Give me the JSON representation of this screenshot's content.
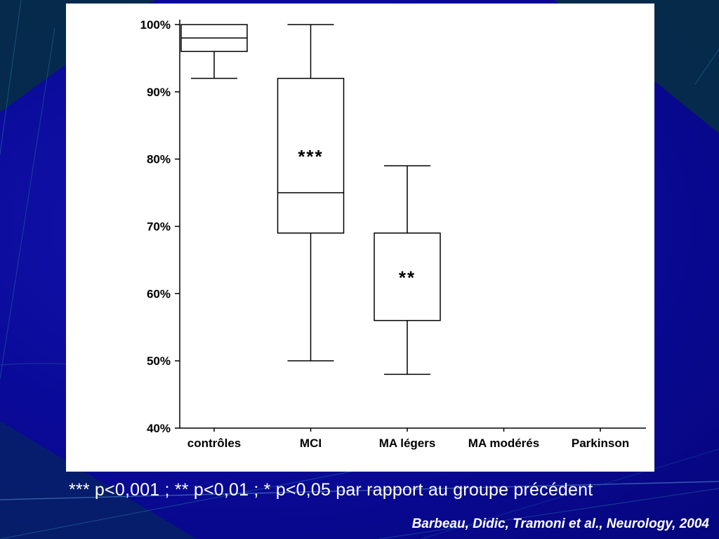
{
  "slide": {
    "footnote": "*** p<0,001 ; ** p<0,01 ; * p<0,05 par rapport au groupe précédent",
    "citation": "Barbeau, Didic, Tramoni et al., Neurology, 2004"
  },
  "colors": {
    "slide_background": "#0a0a99",
    "panel_background": "#ffffff",
    "chart_ink": "#000000",
    "slide_text": "#ffffff",
    "decor_line": "#3f7fbf",
    "decor_corner": "#05303f"
  },
  "chart_data": {
    "type": "boxplot",
    "title": "",
    "xlabel": "",
    "ylabel": "",
    "categories": [
      "contrôles",
      "MCI",
      "MA légers",
      "MA modérés",
      "Parkinson"
    ],
    "ylim": [
      40,
      100
    ],
    "yticks": [
      40,
      50,
      60,
      70,
      80,
      90,
      100
    ],
    "ytick_suffix": "%",
    "grid": false,
    "legend": false,
    "series": [
      {
        "category": "contrôles",
        "whisker_low": 92,
        "q1": 96,
        "median": 98,
        "q3": 100,
        "whisker_high": 100,
        "significance": null
      },
      {
        "category": "MCI",
        "whisker_low": 50,
        "q1": 69,
        "median": 75,
        "q3": 92,
        "whisker_high": 100,
        "significance": "***"
      },
      {
        "category": "MA légers",
        "whisker_low": 48,
        "q1": 56,
        "median": null,
        "q3": 69,
        "whisker_high": 79,
        "significance": "**"
      },
      {
        "category": "MA modérés",
        "whisker_low": null,
        "q1": null,
        "median": null,
        "q3": null,
        "whisker_high": null,
        "significance": null
      },
      {
        "category": "Parkinson",
        "whisker_low": null,
        "q1": null,
        "median": null,
        "q3": null,
        "whisker_high": null,
        "significance": null
      }
    ]
  }
}
